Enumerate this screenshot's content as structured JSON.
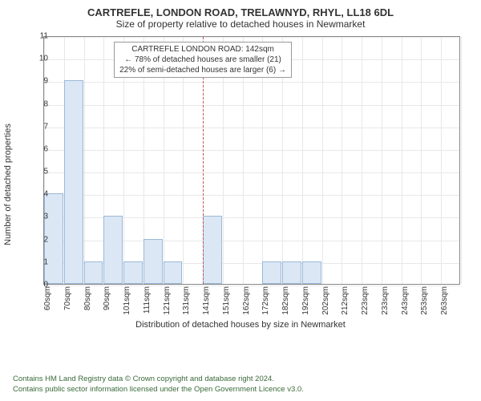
{
  "title_main": "CARTREFLE, LONDON ROAD, TRELAWNYD, RHYL, LL18 6DL",
  "title_sub": "Size of property relative to detached houses in Newmarket",
  "chart": {
    "type": "bar",
    "y_label": "Number of detached properties",
    "x_label": "Distribution of detached houses by size in Newmarket",
    "y_min": 0,
    "y_max": 11,
    "y_ticks": [
      0,
      1,
      2,
      3,
      4,
      5,
      6,
      7,
      8,
      9,
      10,
      11
    ],
    "x_ticks": [
      "60sqm",
      "70sqm",
      "80sqm",
      "90sqm",
      "101sqm",
      "111sqm",
      "121sqm",
      "131sqm",
      "141sqm",
      "151sqm",
      "162sqm",
      "172sqm",
      "182sqm",
      "192sqm",
      "202sqm",
      "212sqm",
      "223sqm",
      "233sqm",
      "243sqm",
      "253sqm",
      "263sqm"
    ],
    "bar_fill": "#dbe7f5",
    "bar_stroke": "#9bb8d8",
    "grid_color": "#e8e8e8",
    "axis_color": "#888888",
    "values": [
      4,
      9,
      1,
      3,
      1,
      2,
      1,
      0,
      3,
      0,
      0,
      1,
      1,
      1,
      0,
      0,
      0,
      0,
      0,
      0,
      0
    ],
    "marker": {
      "bin_index": 8,
      "color": "#cc5555",
      "lines": [
        "CARTREFLE LONDON ROAD: 142sqm",
        "← 78% of detached houses are smaller (21)",
        "22% of semi-detached houses are larger (6) →"
      ]
    }
  },
  "credit_line1": "Contains HM Land Registry data © Crown copyright and database right 2024.",
  "credit_line2": "Contains public sector information licensed under the Open Government Licence v3.0."
}
